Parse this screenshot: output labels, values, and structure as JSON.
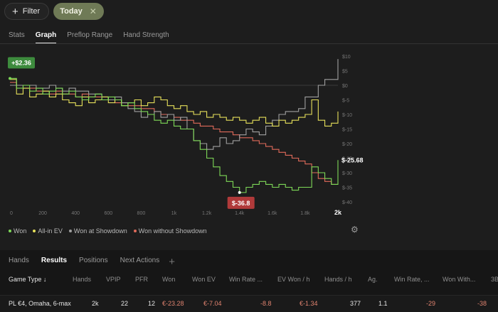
{
  "filters": {
    "filter_label": "Filter",
    "today_label": "Today"
  },
  "tabs": [
    "Stats",
    "Graph",
    "Preflop Range",
    "Hand Strength"
  ],
  "chart_data": {
    "type": "line",
    "xlim": [
      0,
      2000
    ],
    "ylim": [
      -40,
      10
    ],
    "x_ticks": [
      "0",
      "200",
      "400",
      "600",
      "800",
      "1k",
      "1.2k",
      "1.4k",
      "1.6k",
      "1.8k",
      "2k"
    ],
    "y_ticks": [
      "$10",
      "$5",
      "$0",
      "$-5",
      "$-10",
      "$-15",
      "$-20",
      "$-25",
      "$-30",
      "$-35",
      "$-40"
    ],
    "max_label": "+$2.36",
    "min_label": "$-36.8",
    "end_label": "$-25.68",
    "series": [
      {
        "name": "Won",
        "color": "#7ed957",
        "x": [
          0,
          40,
          80,
          120,
          160,
          200,
          240,
          280,
          320,
          360,
          400,
          440,
          480,
          520,
          560,
          600,
          640,
          680,
          720,
          760,
          800,
          840,
          880,
          920,
          960,
          1000,
          1040,
          1080,
          1120,
          1160,
          1200,
          1240,
          1280,
          1320,
          1360,
          1400,
          1440,
          1480,
          1520,
          1560,
          1600,
          1640,
          1680,
          1720,
          1760,
          1800,
          1840,
          1880,
          1920,
          1960,
          2000
        ],
        "y": [
          2.36,
          -1,
          0,
          -2,
          -1,
          -3,
          -2,
          -1,
          -3,
          -2,
          -4,
          -5,
          -4,
          -3,
          -5,
          -4,
          -5,
          -7,
          -6,
          -8,
          -9,
          -10,
          -12,
          -13,
          -12,
          -14,
          -15,
          -15,
          -19,
          -22,
          -25,
          -28,
          -31,
          -33,
          -35,
          -36.8,
          -35,
          -34,
          -33,
          -34,
          -35,
          -34,
          -35,
          -36,
          -35,
          -35,
          -28,
          -30,
          -32,
          -34,
          -25.68
        ]
      },
      {
        "name": "All-in EV",
        "color": "#e6e05a",
        "x": [
          0,
          40,
          80,
          120,
          160,
          200,
          240,
          280,
          320,
          360,
          400,
          440,
          480,
          520,
          560,
          600,
          640,
          680,
          720,
          760,
          800,
          840,
          880,
          920,
          960,
          1000,
          1040,
          1080,
          1120,
          1160,
          1200,
          1240,
          1280,
          1320,
          1360,
          1400,
          1440,
          1480,
          1520,
          1560,
          1600,
          1640,
          1680,
          1720,
          1760,
          1800,
          1840,
          1880,
          1920,
          1960,
          2000
        ],
        "y": [
          2,
          -3,
          -1,
          -4,
          -3,
          -2,
          -4,
          -3,
          -5,
          -6,
          -7,
          -4,
          -6,
          -5,
          -4,
          -6,
          -5,
          -7,
          -6,
          -5,
          -7,
          -6,
          -4,
          -5,
          -7,
          -8,
          -7,
          -9,
          -10,
          -9,
          -11,
          -10,
          -11,
          -12,
          -11,
          -12,
          -13,
          -12,
          -11,
          -13,
          -14,
          -12,
          -13,
          -12,
          -11,
          -10,
          -5,
          -12,
          -14,
          -13,
          -9
        ]
      },
      {
        "name": "Won at Showdown",
        "color": "#a0a0a0",
        "x": [
          0,
          40,
          80,
          120,
          160,
          200,
          240,
          280,
          320,
          360,
          400,
          440,
          480,
          520,
          560,
          600,
          640,
          680,
          720,
          760,
          800,
          840,
          880,
          920,
          960,
          1000,
          1040,
          1080,
          1120,
          1160,
          1200,
          1240,
          1280,
          1320,
          1360,
          1400,
          1440,
          1480,
          1520,
          1560,
          1600,
          1640,
          1680,
          1720,
          1760,
          1800,
          1840,
          1880,
          1920,
          1960,
          2000
        ],
        "y": [
          0,
          0,
          0,
          0,
          -1,
          -1,
          0,
          -1,
          -2,
          -1,
          -2,
          -2,
          -3,
          -3,
          -4,
          -5,
          -4,
          -6,
          -8,
          -9,
          -11,
          -10,
          -9,
          -11,
          -10,
          -12,
          -11,
          -15,
          -19,
          -20,
          -22,
          -21,
          -18,
          -20,
          -19,
          -17,
          -15,
          -16,
          -17,
          -14,
          -12,
          -10,
          -9,
          -9,
          -8,
          -4,
          -4,
          0,
          2,
          2,
          9
        ]
      },
      {
        "name": "Won without Showdown",
        "color": "#e06a5a",
        "x": [
          0,
          40,
          80,
          120,
          160,
          200,
          240,
          280,
          320,
          360,
          400,
          440,
          480,
          520,
          560,
          600,
          640,
          680,
          720,
          760,
          800,
          840,
          880,
          920,
          960,
          1000,
          1040,
          1080,
          1120,
          1160,
          1200,
          1240,
          1280,
          1320,
          1360,
          1400,
          1440,
          1480,
          1520,
          1560,
          1600,
          1640,
          1680,
          1720,
          1760,
          1800,
          1840,
          1880,
          1920,
          1960,
          2000
        ],
        "y": [
          1,
          0,
          -1,
          -1,
          -2,
          -2,
          -3,
          -2,
          -3,
          -3,
          -4,
          -3,
          -4,
          -4,
          -5,
          -5,
          -6,
          -6,
          -7,
          -7,
          -8,
          -8,
          -9,
          -10,
          -10,
          -11,
          -12,
          -12,
          -13,
          -14,
          -14,
          -15,
          -16,
          -16,
          -17,
          -18,
          -18,
          -19,
          -20,
          -21,
          -22,
          -23,
          -24,
          -25,
          -26,
          -27,
          -30,
          -32,
          -33,
          -34,
          -34
        ]
      }
    ]
  },
  "legend": [
    "Won",
    "All-in EV",
    "Won at Showdown",
    "Won without Showdown"
  ],
  "bottom_tabs": [
    "Hands",
    "Results",
    "Positions",
    "Next Actions"
  ],
  "table": {
    "headers": [
      "Game Type ↓",
      "Hands",
      "VPIP",
      "PFR",
      "Won",
      "Won EV",
      "Win Rate ...",
      "EV Won / h",
      "Hands / h",
      "Ag.",
      "Win Rate, ...",
      "Won With...",
      "3B"
    ],
    "row": [
      "PL €4, Omaha, 6-max",
      "2k",
      "22",
      "12",
      "€-23.28",
      "€-7.04",
      "-8.8",
      "€-1.34",
      "377",
      "1.1",
      "-29",
      "-38",
      ""
    ]
  }
}
